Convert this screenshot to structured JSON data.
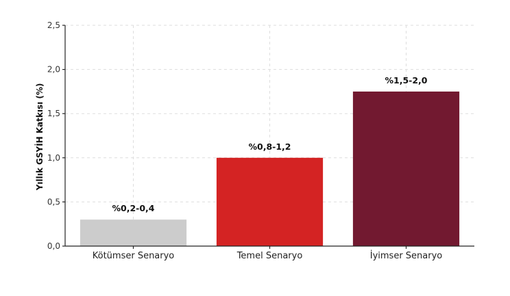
{
  "chart_data": {
    "type": "bar",
    "ylabel": "Yıllık GSYİH Katkısı (%)",
    "xlabel": "",
    "ylim": [
      0,
      2.5
    ],
    "yticks": [
      0,
      0.5,
      1.0,
      1.5,
      2.0,
      2.5
    ],
    "ytick_labels": [
      "0,0",
      "0,5",
      "1,0",
      "1,5",
      "2,0",
      "2,5"
    ],
    "grid": true,
    "categories": [
      "Kötümser Senaryo",
      "Temel Senaryo",
      "İyimser Senaryo"
    ],
    "values": [
      0.3,
      1.0,
      1.75
    ],
    "data_labels": [
      "%0,2-0,4",
      "%0,8-1,2",
      "%1,5-2,0"
    ],
    "colors": [
      "#cccccc",
      "#d42323",
      "#721930"
    ]
  }
}
